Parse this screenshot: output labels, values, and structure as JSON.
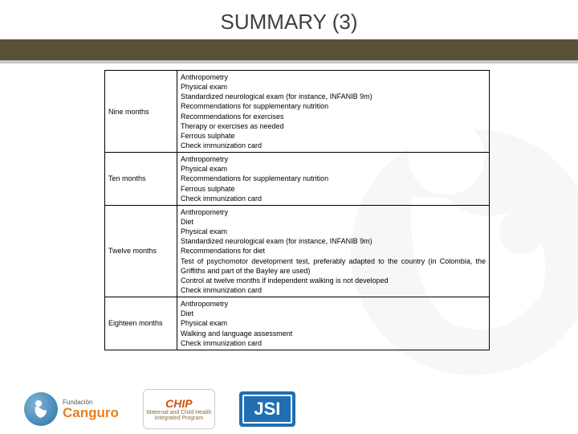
{
  "title": "SUMMARY (3)",
  "table": {
    "rows": [
      {
        "label": "Nine months",
        "lines": [
          "Anthropometry",
          "Physical exam",
          "Standardized neurological exam (for instance, INFANIB 9m)",
          "Recommendations for supplementary nutrition",
          "Recommendations for exercises",
          "Therapy or exercises as needed",
          "Ferrous sulphate",
          "Check immunization card"
        ]
      },
      {
        "label": "Ten months",
        "lines": [
          "Anthropometry",
          "Physical exam",
          "Recommendations for supplementary nutrition",
          "Ferrous sulphate",
          "Check immunization card"
        ]
      },
      {
        "label": "Twelve months",
        "lines": [
          "Anthropometry",
          "Diet",
          "Physical exam",
          "Standardized neurological exam (for instance, INFANIB 9m)",
          "Recommendations for diet",
          "Test of psychomotor development test, preferably adapted to the country (in Colombia, the Griffiths and part of the Bayley are used)",
          "Control at twelve months if independent walking is not developed",
          "Check immunization card"
        ],
        "justify_indices": [
          5
        ]
      },
      {
        "label": "Eighteen months",
        "lines": [
          "Anthropometry",
          "Diet",
          "Physical exam",
          "Walking and language assessment",
          "Check immunization card"
        ]
      }
    ]
  },
  "footer": {
    "canguro_small": "Fundación",
    "canguro_big": "Canguro",
    "chip_title": "CHIP",
    "chip_sub1": "Maternal and Child Health",
    "chip_sub2": "Integrated Program",
    "jsi": "JSI"
  },
  "colors": {
    "bar": "#5a5136",
    "bar_shadow": "#c8c8c8",
    "title_text": "#3f3f3f"
  }
}
